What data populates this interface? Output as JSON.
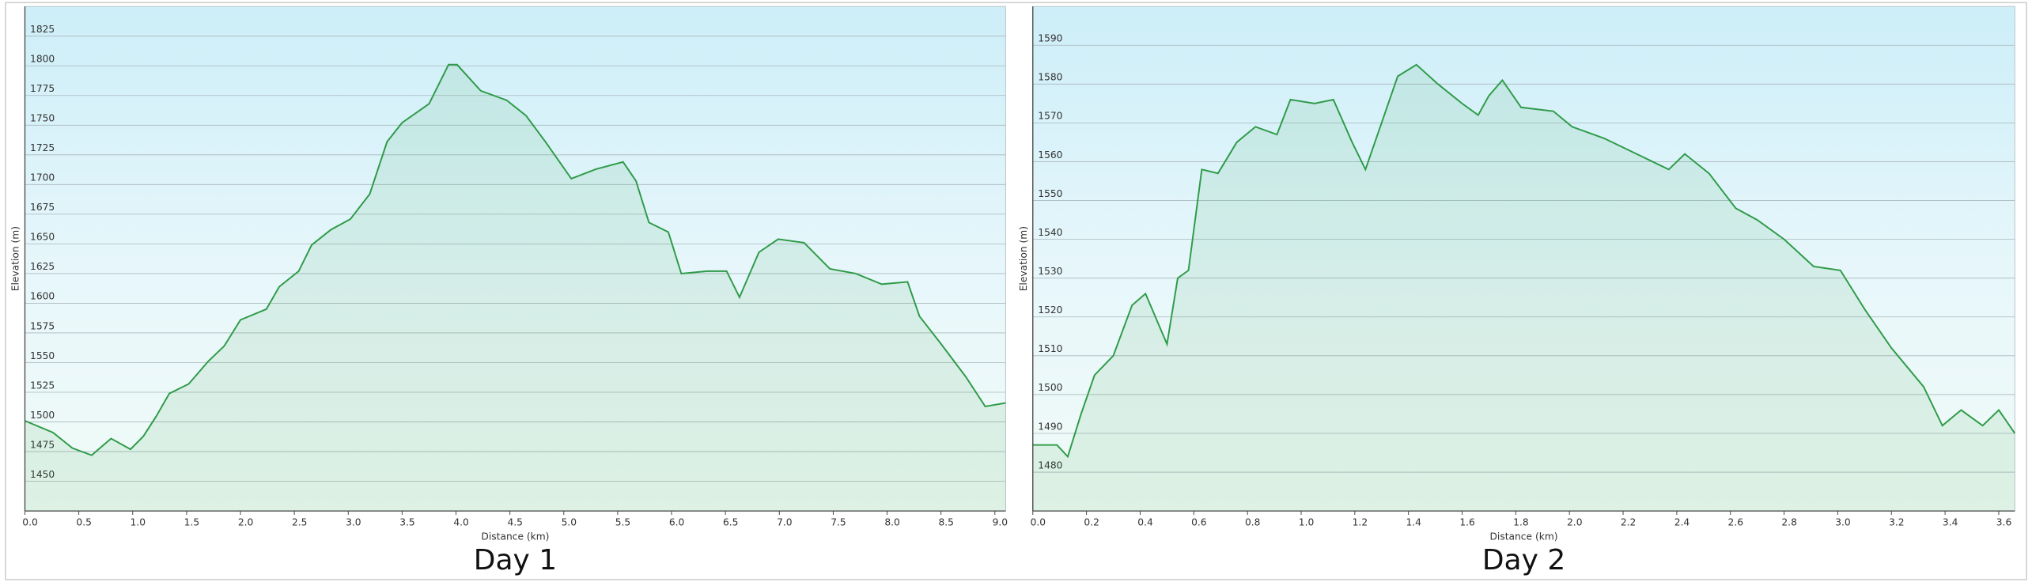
{
  "chart_data": [
    {
      "type": "area",
      "title": "Day 1",
      "xlabel": "Distance (km)",
      "ylabel": "Elevation (m)",
      "color": "#2e9b48",
      "grid": true,
      "xlim": [
        0,
        9.1
      ],
      "ylim": [
        1425,
        1850
      ],
      "xticks": [
        {
          "value": 0,
          "label": "0.0"
        },
        0.5,
        {
          "value": 1,
          "label": "1.0"
        },
        1.5,
        {
          "value": 2,
          "label": "2.0"
        },
        2.5,
        {
          "value": 3,
          "label": "3.0"
        },
        3.5,
        {
          "value": 4,
          "label": "4.0"
        },
        4.5,
        {
          "value": 5,
          "label": "5.0"
        },
        5.5,
        {
          "value": 6,
          "label": "6.0"
        },
        6.5,
        {
          "value": 7,
          "label": "7.0"
        },
        7.5,
        {
          "value": 8,
          "label": "8.0"
        },
        8.5,
        {
          "value": 9,
          "label": "9.0"
        }
      ],
      "yticks": [
        1450,
        1475,
        1500,
        1525,
        1550,
        1575,
        1600,
        1625,
        1650,
        1675,
        1700,
        1725,
        1750,
        1775,
        1800,
        1825
      ],
      "x": [
        0,
        0.26,
        0.44,
        0.62,
        0.8,
        0.98,
        1.1,
        1.22,
        1.34,
        1.52,
        1.7,
        1.85,
        2.0,
        2.24,
        2.36,
        2.54,
        2.66,
        2.84,
        3.02,
        3.2,
        3.36,
        3.5,
        3.75,
        3.93,
        4.01,
        4.23,
        4.47,
        4.65,
        4.83,
        5.07,
        5.3,
        5.55,
        5.67,
        5.79,
        5.97,
        6.09,
        6.33,
        6.51,
        6.63,
        6.81,
        6.99,
        7.23,
        7.47,
        7.71,
        7.95,
        8.19,
        8.3,
        8.49,
        8.73,
        8.91,
        9.1
      ],
      "values": [
        1501,
        1491,
        1478,
        1472,
        1486,
        1477,
        1488,
        1505,
        1524,
        1532,
        1551,
        1564,
        1586,
        1595,
        1614,
        1627,
        1649,
        1662,
        1671,
        1692,
        1736,
        1752,
        1768,
        1801,
        1801,
        1779,
        1771,
        1758,
        1736,
        1705,
        1713,
        1719,
        1703,
        1668,
        1660,
        1625,
        1627,
        1627,
        1605,
        1643,
        1654,
        1651,
        1629,
        1625,
        1616,
        1618,
        1589,
        1567,
        1538,
        1513,
        1516
      ]
    },
    {
      "type": "area",
      "title": "Day 2",
      "xlabel": "Distance (km)",
      "ylabel": "Elevation (m)",
      "color": "#2e9b48",
      "grid": true,
      "xlim": [
        0,
        3.66
      ],
      "ylim": [
        1470,
        1600
      ],
      "xticks": [
        {
          "value": 0,
          "label": "0.0"
        },
        0.2,
        0.4,
        0.6,
        0.8,
        {
          "value": 1,
          "label": "1.0"
        },
        1.2,
        1.4,
        1.6,
        1.8,
        {
          "value": 2,
          "label": "2.0"
        },
        2.2,
        2.4,
        2.6,
        2.8,
        {
          "value": 3,
          "label": "3.0"
        },
        3.2,
        3.4,
        3.6
      ],
      "yticks": [
        1480,
        1490,
        1500,
        1510,
        1520,
        1530,
        1540,
        1550,
        1560,
        1570,
        1580,
        1590
      ],
      "x": [
        0,
        0.09,
        0.13,
        0.18,
        0.23,
        0.3,
        0.37,
        0.42,
        0.5,
        0.54,
        0.58,
        0.63,
        0.69,
        0.76,
        0.83,
        0.91,
        0.96,
        1.05,
        1.12,
        1.19,
        1.24,
        1.29,
        1.36,
        1.43,
        1.51,
        1.6,
        1.66,
        1.7,
        1.75,
        1.82,
        1.94,
        2.01,
        2.13,
        2.25,
        2.37,
        2.43,
        2.52,
        2.62,
        2.7,
        2.8,
        2.91,
        3.01,
        3.1,
        3.2,
        3.32,
        3.39,
        3.46,
        3.54,
        3.6,
        3.66
      ],
      "values": [
        1487,
        1487,
        1484,
        1495,
        1505,
        1510,
        1523,
        1526,
        1513,
        1530,
        1532,
        1558,
        1557,
        1565,
        1569,
        1567,
        1576,
        1575,
        1576,
        1565,
        1558,
        1568,
        1582,
        1585,
        1580,
        1575,
        1572,
        1577,
        1581,
        1574,
        1573,
        1569,
        1566,
        1562,
        1558,
        1562,
        1557,
        1548,
        1545,
        1540,
        1533,
        1532,
        1522,
        1512,
        1502,
        1492,
        1496,
        1492,
        1496,
        1490
      ]
    }
  ]
}
